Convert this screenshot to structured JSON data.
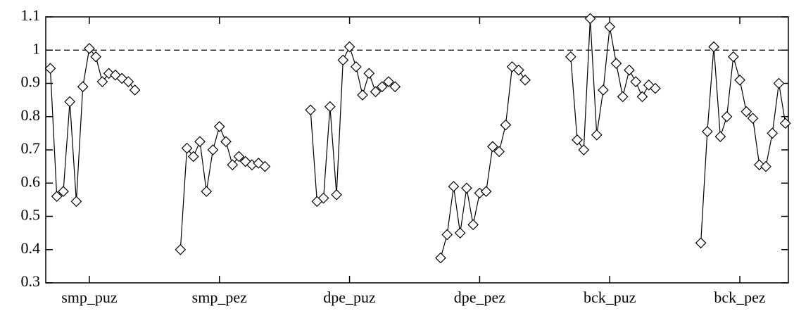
{
  "chart_data": {
    "type": "line",
    "xlim": [
      0.665,
      6.373
    ],
    "xticks": [
      {
        "value": 1,
        "label": "smp_puz"
      },
      {
        "value": 2,
        "label": "smp_pez"
      },
      {
        "value": 3,
        "label": "dpe_puz"
      },
      {
        "value": 4,
        "label": "dpe_pez"
      },
      {
        "value": 5,
        "label": "bck_puz"
      },
      {
        "value": 6,
        "label": "bck_pez"
      }
    ],
    "ylim": [
      0.3,
      1.1
    ],
    "yticks": [
      0.3,
      0.4,
      0.5,
      0.6,
      0.7,
      0.8,
      0.9,
      1,
      1.1
    ],
    "reference_line": 1,
    "marker": "diamond",
    "series": [
      {
        "color": "#000000",
        "x": [
          0.7,
          0.75,
          0.8,
          0.85,
          0.9,
          0.95,
          1.0,
          1.05,
          1.1,
          1.15,
          1.2,
          1.25,
          1.3,
          1.35
        ],
        "values": [
          0.945,
          0.56,
          0.575,
          0.845,
          0.545,
          0.89,
          1.005,
          0.98,
          0.905,
          0.93,
          0.925,
          0.915,
          0.905,
          0.88
        ]
      },
      {
        "color": "#000000",
        "x": [
          1.7,
          1.75,
          1.8,
          1.85,
          1.9,
          1.95,
          2.0,
          2.05,
          2.1,
          2.15,
          2.2,
          2.25,
          2.3,
          2.35
        ],
        "values": [
          0.4,
          0.705,
          0.68,
          0.725,
          0.575,
          0.7,
          0.77,
          0.725,
          0.655,
          0.68,
          0.665,
          0.655,
          0.66,
          0.65
        ]
      },
      {
        "color": "#000000",
        "x": [
          2.7,
          2.75,
          2.8,
          2.85,
          2.9,
          2.95,
          3.0,
          3.05,
          3.1,
          3.15,
          3.2,
          3.25,
          3.3,
          3.35
        ],
        "values": [
          0.82,
          0.545,
          0.555,
          0.83,
          0.565,
          0.97,
          1.01,
          0.95,
          0.865,
          0.93,
          0.875,
          0.89,
          0.905,
          0.89
        ]
      },
      {
        "color": "#000000",
        "x": [
          3.7,
          3.75,
          3.8,
          3.85,
          3.9,
          3.95,
          4.0,
          4.05,
          4.1,
          4.15,
          4.2,
          4.25,
          4.3,
          4.35
        ],
        "values": [
          0.375,
          0.445,
          0.59,
          0.45,
          0.585,
          0.475,
          0.57,
          0.575,
          0.71,
          0.695,
          0.775,
          0.95,
          0.94,
          0.91
        ]
      },
      {
        "color": "#000000",
        "x": [
          4.7,
          4.75,
          4.8,
          4.85,
          4.9,
          4.95,
          5.0,
          5.05,
          5.1,
          5.15,
          5.2,
          5.25,
          5.3,
          5.35
        ],
        "values": [
          0.98,
          0.73,
          0.7,
          1.095,
          0.745,
          0.88,
          1.07,
          0.96,
          0.86,
          0.94,
          0.905,
          0.86,
          0.895,
          0.885
        ]
      },
      {
        "color": "#000000",
        "x": [
          5.7,
          5.75,
          5.8,
          5.85,
          5.9,
          5.95,
          6.0,
          6.05,
          6.1,
          6.15,
          6.2,
          6.25,
          6.3,
          6.35
        ],
        "values": [
          0.42,
          0.755,
          1.01,
          0.74,
          0.8,
          0.98,
          0.91,
          0.815,
          0.795,
          0.655,
          0.65,
          0.75,
          0.9,
          0.78
        ]
      }
    ]
  }
}
